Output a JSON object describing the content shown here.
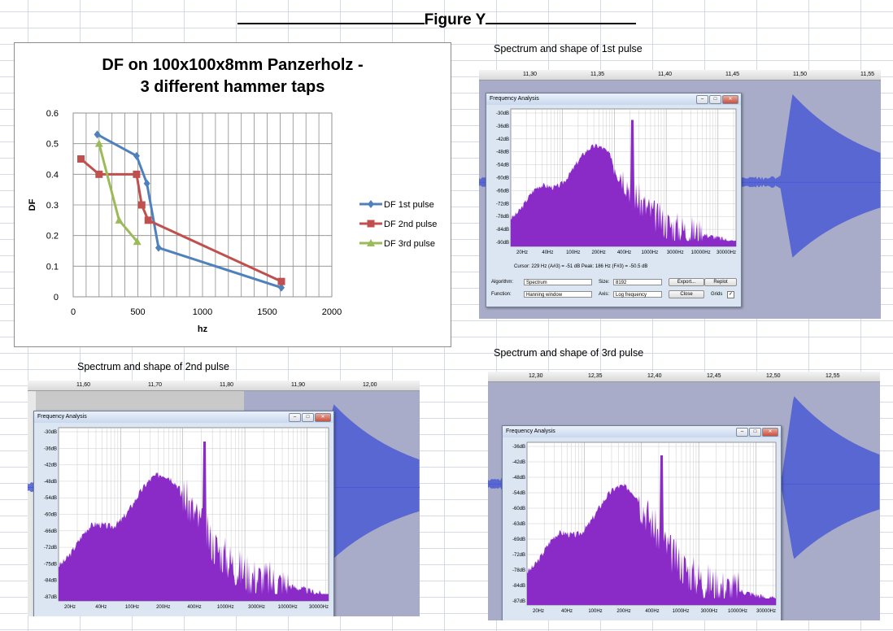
{
  "figure_title": "Figure Y",
  "captions": {
    "p1": "Spectrum and shape of 1st pulse",
    "p2": "Spectrum and shape of 2nd pulse",
    "p3": "Spectrum and shape of 3rd pulse"
  },
  "chart_data": {
    "type": "line",
    "title": "DF on 100x100x8mm Panzerholz - 3 different hammer taps",
    "xlabel": "hz",
    "ylabel": "DF",
    "xlim": [
      0,
      2000
    ],
    "ylim": [
      0,
      0.6
    ],
    "xticks": [
      0,
      500,
      1000,
      1500,
      2000
    ],
    "yticks": [
      0,
      0.1,
      0.2,
      0.3,
      0.4,
      0.5,
      0.6
    ],
    "grid": true,
    "legend_position": "right",
    "series": [
      {
        "name": "DF 1st pulse",
        "color": "#4f81bd",
        "marker": "diamond",
        "x": [
          186,
          490,
          570,
          660,
          1610
        ],
        "y": [
          0.53,
          0.46,
          0.37,
          0.16,
          0.03
        ]
      },
      {
        "name": "DF 2nd pulse",
        "color": "#c0504d",
        "marker": "square",
        "x": [
          60,
          200,
          490,
          530,
          580,
          1610
        ],
        "y": [
          0.45,
          0.4,
          0.4,
          0.3,
          0.25,
          0.05
        ]
      },
      {
        "name": "DF 3rd pulse",
        "color": "#9bbb59",
        "marker": "triangle",
        "x": [
          200,
          355,
          495
        ],
        "y": [
          0.5,
          0.25,
          0.18
        ]
      }
    ]
  },
  "shots": [
    {
      "id": "p1",
      "window_title": "Frequency Analysis",
      "ruler": [
        "11,30",
        "11,35",
        "11,40",
        "11,45",
        "11,50",
        "11,55"
      ],
      "db_labels": [
        "-30dB",
        "-36dB",
        "-42dB",
        "-48dB",
        "-54dB",
        "-60dB",
        "-66dB",
        "-72dB",
        "-78dB",
        "-84dB",
        "-90dB"
      ],
      "freq_labels": [
        "20Hz",
        "40Hz",
        "100Hz",
        "200Hz",
        "400Hz",
        "1000Hz",
        "3000Hz",
        "10000Hz",
        "30000Hz"
      ],
      "cursor": "Cursor: 229 Hz (A#3) = -51 dB   Peak: 186 Hz (F#3) = -50.5 dB",
      "algorithm_label": "Algorithm:",
      "algorithm": "Spectrum",
      "function_label": "Function:",
      "function": "Hanning window",
      "size_label": "Size:",
      "size": "8192",
      "axis_label": "Axis:",
      "axis": "Log frequency",
      "export": "Export...",
      "replot": "Replot",
      "close": "Close",
      "grids": "Grids",
      "spectrum_color": "#8a2bc8",
      "wave_color": "#4a5ad4"
    },
    {
      "id": "p2",
      "window_title": "Frequency Analysis",
      "ruler": [
        "11,60",
        "11,70",
        "11,80",
        "11,90",
        "12,00"
      ],
      "db_labels": [
        "-30dB",
        "-36dB",
        "-42dB",
        "-48dB",
        "-54dB",
        "-60dB",
        "-66dB",
        "-72dB",
        "-75dB",
        "-84dB",
        "-87dB"
      ],
      "freq_labels": [
        "20Hz",
        "40Hz",
        "100Hz",
        "200Hz",
        "400Hz",
        "1000Hz",
        "3000Hz",
        "10000Hz",
        "30000Hz"
      ],
      "spectrum_color": "#8a2bc8",
      "wave_color": "#4a5ad4"
    },
    {
      "id": "p3",
      "window_title": "Frequency Analysis",
      "ruler": [
        "12,30",
        "12,35",
        "12,40",
        "12,45",
        "12,50",
        "12,55"
      ],
      "db_labels": [
        "-36dB",
        "-42dB",
        "-48dB",
        "-54dB",
        "-60dB",
        "-63dB",
        "-69dB",
        "-72dB",
        "-78dB",
        "-84dB",
        "-87dB"
      ],
      "freq_labels": [
        "20Hz",
        "40Hz",
        "100Hz",
        "200Hz",
        "400Hz",
        "1000Hz",
        "3000Hz",
        "10000Hz",
        "30000Hz"
      ],
      "spectrum_color": "#8a2bc8",
      "wave_color": "#4a5ad4"
    }
  ]
}
